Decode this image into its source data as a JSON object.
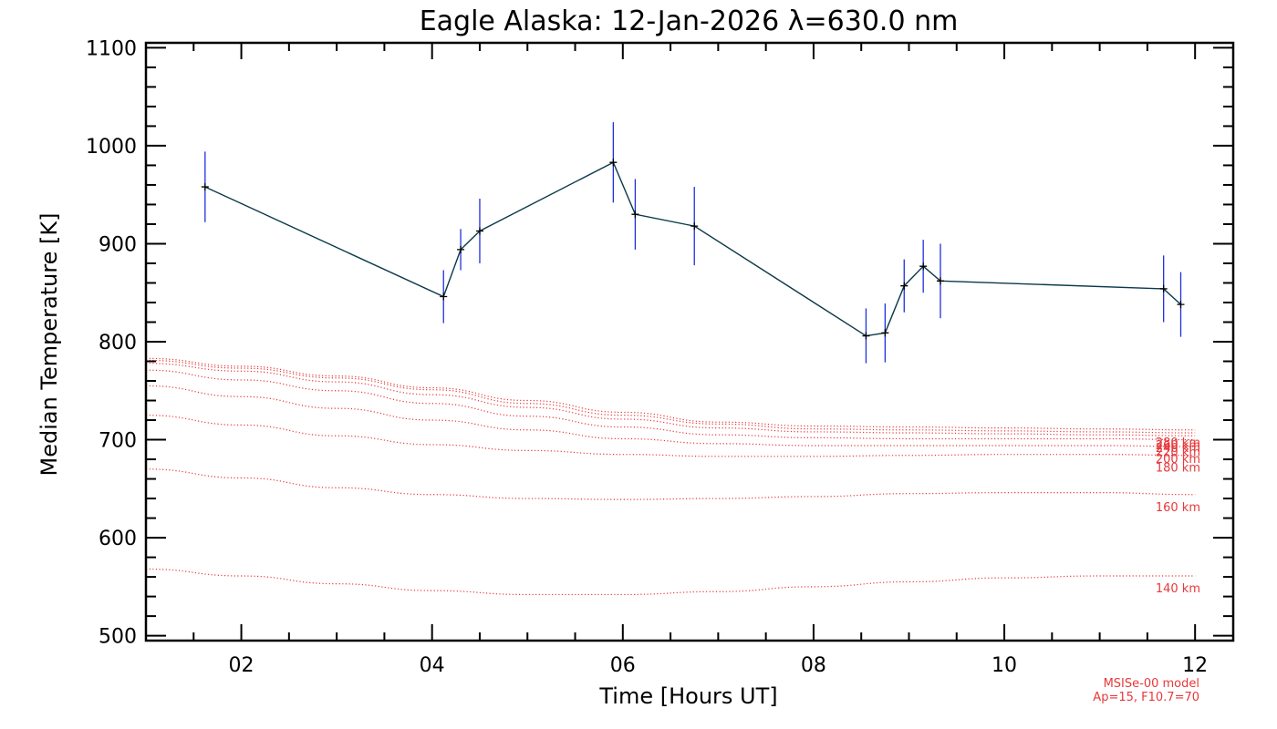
{
  "chart_data": {
    "type": "line",
    "title": "Eagle Alaska: 12-Jan-2026 λ=630.0 nm",
    "xlabel": "Time [Hours UT]",
    "ylabel": "Median Temperature [K]",
    "xlim": [
      1.0,
      12.4
    ],
    "ylim": [
      495,
      1105
    ],
    "x_ticks": [
      2,
      4,
      6,
      8,
      10,
      12
    ],
    "x_tick_labels": [
      "02",
      "04",
      "06",
      "08",
      "10",
      "12"
    ],
    "y_ticks": [
      500,
      600,
      700,
      800,
      900,
      1000,
      1100
    ],
    "y_tick_labels": [
      "500",
      "600",
      "700",
      "800",
      "900",
      "1000",
      "1100"
    ],
    "measured": {
      "name": "Median Temperature",
      "line_color": "#0b3a4a",
      "errorbar_color": "#1f2fe0",
      "points": [
        {
          "x": 1.62,
          "y": 958,
          "err": 36
        },
        {
          "x": 4.12,
          "y": 846,
          "err": 27
        },
        {
          "x": 4.3,
          "y": 894,
          "err": 21
        },
        {
          "x": 4.5,
          "y": 913,
          "err": 33
        },
        {
          "x": 5.9,
          "y": 983,
          "err": 41
        },
        {
          "x": 6.13,
          "y": 930,
          "err": 36
        },
        {
          "x": 6.75,
          "y": 918,
          "err": 40
        },
        {
          "x": 8.55,
          "y": 806,
          "err": 28
        },
        {
          "x": 8.75,
          "y": 809,
          "err": 30
        },
        {
          "x": 8.95,
          "y": 857,
          "err": 27
        },
        {
          "x": 9.15,
          "y": 877,
          "err": 27
        },
        {
          "x": 9.33,
          "y": 862,
          "err": 38
        },
        {
          "x": 11.67,
          "y": 854,
          "err": 34
        },
        {
          "x": 11.85,
          "y": 838,
          "err": 33
        }
      ]
    },
    "model": {
      "name": "MSISe-00 model",
      "parameters": "Ap=15, F10.7=70",
      "color": "#e8383a",
      "x": [
        1.0,
        2.0,
        3.0,
        4.0,
        5.0,
        6.0,
        7.0,
        8.0,
        9.0,
        10.0,
        11.0,
        12.0
      ],
      "series": [
        {
          "label": "140 km",
          "values": [
            568,
            561,
            553,
            546,
            542,
            542,
            545,
            550,
            555,
            559,
            561,
            561
          ]
        },
        {
          "label": "160 km",
          "values": [
            670,
            661,
            651,
            644,
            640,
            639,
            640,
            642,
            645,
            646,
            646,
            644
          ]
        },
        {
          "label": "180 km",
          "values": [
            725,
            715,
            704,
            695,
            689,
            685,
            683,
            683,
            684,
            685,
            685,
            684
          ]
        },
        {
          "label": "200 km",
          "values": [
            755,
            744,
            732,
            720,
            710,
            701,
            696,
            694,
            694,
            694,
            694,
            693
          ]
        },
        {
          "label": "220 km",
          "values": [
            771,
            761,
            750,
            737,
            724,
            713,
            705,
            702,
            701,
            701,
            701,
            700
          ]
        },
        {
          "label": "240 km",
          "values": [
            778,
            770,
            759,
            746,
            733,
            721,
            712,
            708,
            707,
            706,
            705,
            704
          ]
        },
        {
          "label": "260 km",
          "values": [
            781,
            773,
            763,
            751,
            737,
            725,
            716,
            711,
            710,
            709,
            708,
            707
          ]
        },
        {
          "label": "280 km",
          "values": [
            783,
            775,
            765,
            753,
            740,
            728,
            718,
            714,
            713,
            712,
            711,
            710
          ]
        }
      ]
    }
  }
}
